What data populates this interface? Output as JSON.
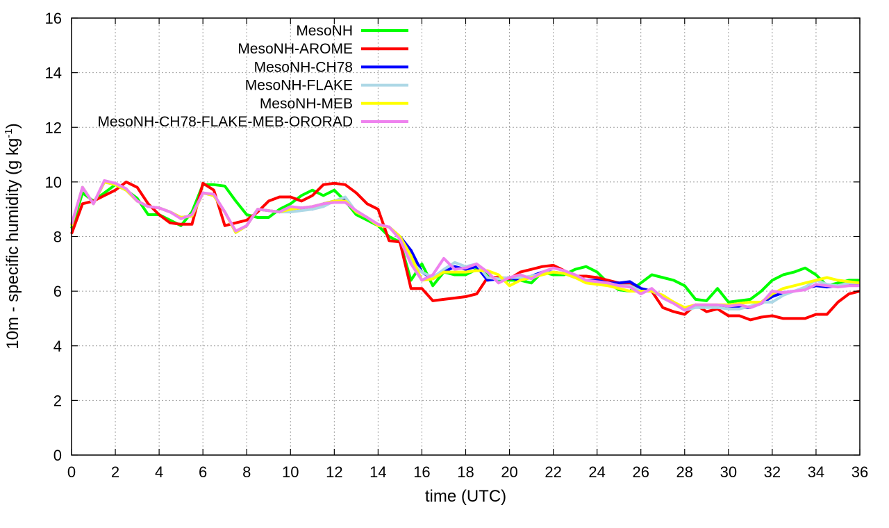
{
  "chart_data": {
    "type": "line",
    "xlabel": "time (UTC)",
    "ylabel": "10m - specific humidity (g kg",
    "ylabel_sup": "-1",
    "ylabel_close": ")",
    "xlim": [
      0,
      36
    ],
    "ylim": [
      0,
      16
    ],
    "xticks": [
      0,
      2,
      4,
      6,
      8,
      10,
      12,
      14,
      16,
      18,
      20,
      22,
      24,
      26,
      28,
      30,
      32,
      34,
      36
    ],
    "yticks": [
      0,
      2,
      4,
      6,
      8,
      10,
      12,
      14,
      16
    ],
    "grid": true,
    "legend_position": "top-left",
    "x": [
      0,
      0.5,
      1,
      1.5,
      2,
      2.5,
      3,
      3.5,
      4,
      4.5,
      5,
      5.5,
      6,
      6.5,
      7,
      7.5,
      8,
      8.5,
      9,
      9.5,
      10,
      10.5,
      11,
      11.5,
      12,
      12.5,
      13,
      13.5,
      14,
      14.5,
      15,
      15.5,
      16,
      16.5,
      17,
      17.5,
      18,
      18.5,
      19,
      19.5,
      20,
      20.5,
      21,
      21.5,
      22,
      22.5,
      23,
      23.5,
      24,
      24.5,
      25,
      25.5,
      26,
      26.5,
      27,
      27.5,
      28,
      28.5,
      29,
      29.5,
      30,
      30.5,
      31,
      31.5,
      32,
      32.5,
      33,
      33.5,
      34,
      34.5,
      35,
      35.5,
      36
    ],
    "series": [
      {
        "name": "MesoNH",
        "color": "#00ff00",
        "values": [
          8.3,
          9.6,
          9.3,
          9.6,
          9.9,
          9.7,
          9.4,
          8.8,
          8.8,
          8.6,
          8.4,
          8.9,
          9.9,
          9.9,
          9.85,
          9.3,
          8.8,
          8.7,
          8.7,
          9.0,
          9.2,
          9.5,
          9.7,
          9.5,
          9.7,
          9.3,
          8.8,
          8.6,
          8.4,
          8.0,
          7.8,
          6.4,
          7.0,
          6.2,
          6.7,
          6.6,
          6.6,
          6.8,
          6.6,
          6.4,
          6.4,
          6.4,
          6.3,
          6.7,
          6.6,
          6.6,
          6.8,
          6.9,
          6.7,
          6.3,
          6.05,
          6.0,
          6.3,
          6.6,
          6.5,
          6.4,
          6.2,
          5.7,
          5.65,
          6.1,
          5.6,
          5.65,
          5.7,
          6.0,
          6.4,
          6.6,
          6.7,
          6.85,
          6.6,
          6.2,
          6.3,
          6.4,
          6.4
        ]
      },
      {
        "name": "MesoNH-AROME",
        "color": "#ff0000",
        "values": [
          8.1,
          9.2,
          9.3,
          9.5,
          9.7,
          10.0,
          9.8,
          9.2,
          8.8,
          8.5,
          8.45,
          8.45,
          9.95,
          9.7,
          8.4,
          8.5,
          8.6,
          8.9,
          9.3,
          9.45,
          9.45,
          9.3,
          9.5,
          9.9,
          9.95,
          9.9,
          9.6,
          9.2,
          9.0,
          7.85,
          7.8,
          6.1,
          6.1,
          5.65,
          5.7,
          5.75,
          5.8,
          5.9,
          6.5,
          6.5,
          6.45,
          6.7,
          6.8,
          6.9,
          6.95,
          6.75,
          6.55,
          6.55,
          6.5,
          6.4,
          6.3,
          6.25,
          6.1,
          6.0,
          5.4,
          5.25,
          5.15,
          5.5,
          5.25,
          5.35,
          5.1,
          5.1,
          4.95,
          5.05,
          5.1,
          5.0,
          5.0,
          5.0,
          5.15,
          5.15,
          5.6,
          5.9,
          6.0
        ]
      },
      {
        "name": "MesoNH-CH78",
        "color": "#0000ff",
        "values": [
          8.4,
          9.8,
          9.2,
          10.0,
          9.9,
          9.7,
          9.3,
          9.1,
          9.05,
          8.9,
          8.7,
          8.75,
          9.6,
          9.5,
          8.9,
          8.15,
          8.4,
          9.0,
          8.95,
          8.9,
          9.0,
          9.05,
          9.0,
          9.2,
          9.3,
          9.35,
          8.9,
          8.7,
          8.4,
          8.35,
          8.0,
          7.5,
          6.7,
          6.45,
          6.7,
          6.9,
          6.8,
          6.9,
          6.4,
          6.45,
          6.5,
          6.4,
          6.55,
          6.7,
          6.7,
          6.65,
          6.5,
          6.4,
          6.4,
          6.3,
          6.3,
          6.35,
          6.1,
          6.0,
          5.8,
          5.6,
          5.35,
          5.45,
          5.45,
          5.4,
          5.4,
          5.4,
          5.4,
          5.55,
          5.8,
          5.95,
          6.0,
          6.1,
          6.2,
          6.15,
          6.2,
          6.25,
          6.3
        ]
      },
      {
        "name": "MesoNH-FLAKE",
        "color": "#add8e6",
        "values": [
          8.4,
          9.8,
          9.2,
          10.0,
          9.9,
          9.7,
          9.3,
          9.1,
          9.05,
          8.9,
          8.7,
          8.75,
          9.6,
          9.5,
          8.9,
          8.15,
          8.4,
          9.0,
          8.95,
          8.9,
          8.9,
          8.95,
          9.0,
          9.1,
          9.3,
          9.45,
          8.9,
          8.7,
          8.4,
          8.35,
          8.0,
          7.1,
          6.7,
          6.5,
          6.8,
          7.05,
          6.9,
          7.0,
          6.5,
          6.45,
          6.5,
          6.5,
          6.55,
          6.65,
          6.7,
          6.65,
          6.5,
          6.4,
          6.3,
          6.3,
          6.2,
          6.2,
          6.0,
          6.0,
          5.8,
          5.6,
          5.3,
          5.4,
          5.4,
          5.4,
          5.35,
          5.35,
          5.45,
          5.6,
          5.6,
          5.85,
          6.0,
          6.15,
          6.4,
          6.25,
          6.2,
          6.3,
          6.3
        ]
      },
      {
        "name": "MesoNH-MEB",
        "color": "#ffff00",
        "values": [
          8.4,
          9.8,
          9.2,
          10.0,
          9.9,
          9.7,
          9.3,
          9.1,
          9.05,
          8.9,
          8.7,
          8.75,
          9.6,
          9.5,
          8.9,
          8.15,
          8.4,
          9.0,
          8.95,
          8.9,
          9.0,
          9.05,
          9.1,
          9.2,
          9.3,
          9.3,
          8.9,
          8.7,
          8.4,
          8.35,
          8.0,
          7.3,
          6.4,
          6.45,
          6.7,
          6.7,
          6.7,
          6.75,
          6.75,
          6.6,
          6.2,
          6.4,
          6.5,
          6.6,
          6.7,
          6.65,
          6.5,
          6.3,
          6.25,
          6.2,
          6.1,
          6.0,
          6.0,
          6.0,
          5.85,
          5.6,
          5.4,
          5.5,
          5.5,
          5.5,
          5.5,
          5.55,
          5.6,
          5.6,
          5.9,
          6.1,
          6.2,
          6.3,
          6.4,
          6.5,
          6.4,
          6.35,
          6.3
        ]
      },
      {
        "name": "MesoNH-CH78-FLAKE-MEB-ORORAD",
        "color": "#ee82ee",
        "values": [
          8.45,
          9.8,
          9.2,
          10.05,
          9.95,
          9.75,
          9.3,
          9.1,
          9.05,
          8.9,
          8.65,
          8.8,
          9.6,
          9.55,
          8.9,
          8.2,
          8.4,
          9.0,
          8.95,
          8.9,
          9.1,
          9.05,
          9.1,
          9.2,
          9.25,
          9.25,
          8.95,
          8.7,
          8.45,
          8.35,
          7.9,
          7.0,
          6.4,
          6.6,
          7.2,
          6.8,
          6.85,
          7.0,
          6.7,
          6.3,
          6.5,
          6.6,
          6.45,
          6.7,
          6.85,
          6.75,
          6.6,
          6.4,
          6.35,
          6.3,
          6.2,
          6.15,
          5.9,
          6.1,
          5.75,
          5.55,
          5.3,
          5.5,
          5.5,
          5.5,
          5.45,
          5.5,
          5.4,
          5.55,
          6.0,
          5.95,
          6.0,
          6.05,
          6.25,
          6.2,
          6.15,
          6.2,
          6.2
        ]
      }
    ]
  }
}
